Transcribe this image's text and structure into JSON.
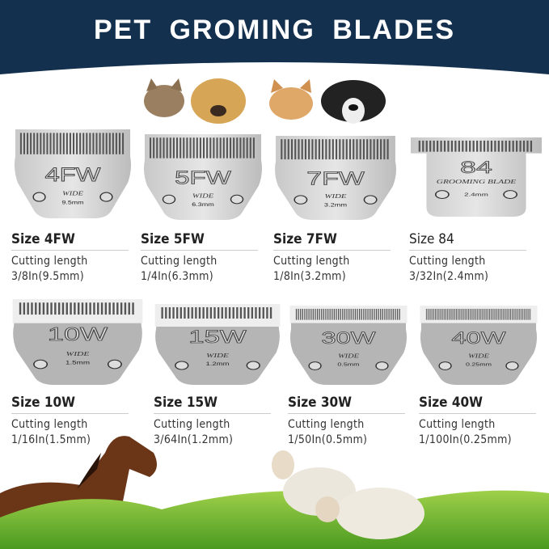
{
  "header": {
    "title": "PET GROMING BLADES",
    "bg_color": "#14304f"
  },
  "pets": [
    "cat",
    "golden-dog",
    "orange-cat",
    "black-white-dog"
  ],
  "blade_text": {
    "wide": "WIDE",
    "grooming": "GROOMING BLADE"
  },
  "cutting_label": "Cutting length",
  "blades": [
    {
      "code": "4FW",
      "mm": "9.5mm",
      "size": "Size 4FW",
      "length": "3/8In(9.5mm)"
    },
    {
      "code": "5FW",
      "mm": "6.3mm",
      "size": "Size 5FW",
      "length": "1/4In(6.3mm)"
    },
    {
      "code": "7FW",
      "mm": "3.2mm",
      "size": "Size 7FW",
      "length": "1/8In(3.2mm)"
    },
    {
      "code": "84",
      "mm": "2.4mm",
      "size": "Size 84",
      "length": "3/32In(2.4mm)"
    },
    {
      "code": "10W",
      "mm": "1.5mm",
      "size": "Size 10W",
      "length": "1/16In(1.5mm)"
    },
    {
      "code": "15W",
      "mm": "1.2mm",
      "size": "Size 15W",
      "length": "3/64In(1.2mm)"
    },
    {
      "code": "30W",
      "mm": "0.5mm",
      "size": "Size 30W",
      "length": "1/50In(0.5mm)"
    },
    {
      "code": "40W",
      "mm": "0.25mm",
      "size": "Size 40W",
      "length": "1/100In(0.25mm)"
    }
  ]
}
